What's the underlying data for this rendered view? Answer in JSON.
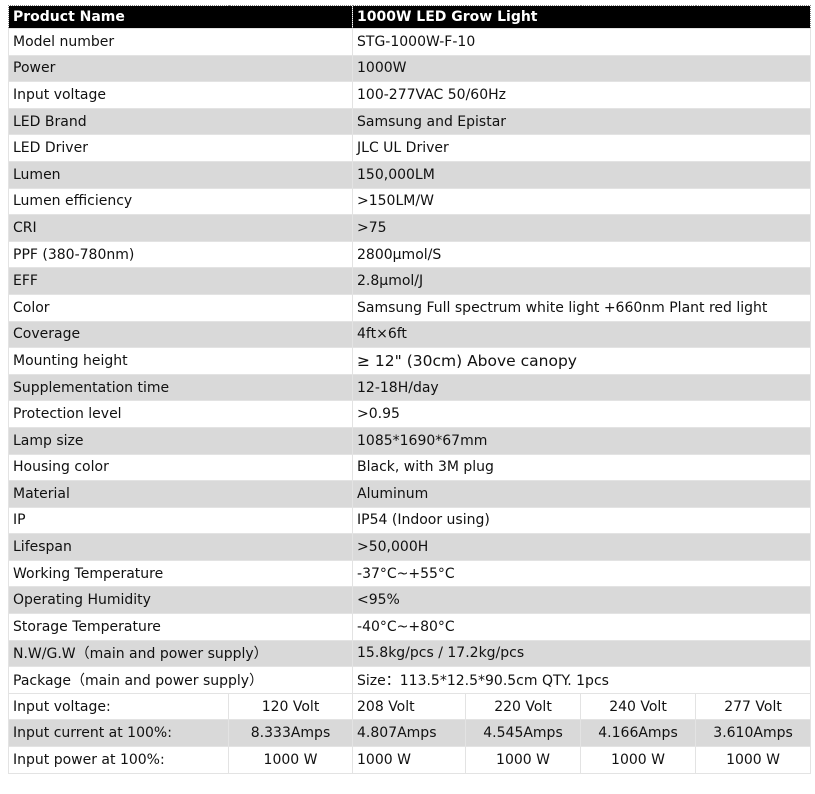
{
  "header": {
    "label": "Product Name",
    "value": "1000W LED Grow Light"
  },
  "rows": [
    [
      "Model number",
      "STG-1000W-F-10"
    ],
    [
      "Power",
      "1000W"
    ],
    [
      "Input voltage",
      "100-277VAC 50/60Hz"
    ],
    [
      "LED Brand",
      "Samsung and Epistar"
    ],
    [
      "LED Driver",
      "JLC UL Driver"
    ],
    [
      "Lumen",
      "150,000LM"
    ],
    [
      "Lumen efficiency",
      ">150LM/W"
    ],
    [
      "CRI",
      ">75"
    ],
    [
      "PPF (380-780nm)",
      "2800μmol/S"
    ],
    [
      "EFF",
      "2.8μmol/J"
    ],
    [
      "Color",
      "Samsung Full spectrum white light +660nm Plant red light"
    ],
    [
      "Coverage",
      "4ft×6ft"
    ],
    [
      "Mounting height",
      "≥ 12\" (30cm) Above canopy"
    ],
    [
      "Supplementation time",
      "12-18H/day"
    ],
    [
      "Protection level",
      ">0.95"
    ],
    [
      "Lamp size",
      "1085*1690*67mm"
    ],
    [
      "Housing color",
      "Black, with 3M plug"
    ],
    [
      "Material",
      "Aluminum"
    ],
    [
      "IP",
      "IP54 (Indoor using)"
    ],
    [
      "Lifespan",
      ">50,000H"
    ],
    [
      "Working Temperature",
      "-37°C~+55°C"
    ],
    [
      "Operating Humidity",
      "<95%"
    ],
    [
      "Storage Temperature",
      "-40°C~+80°C"
    ],
    [
      "N.W/G.W（main and power supply）",
      "15.8kg/pcs / 17.2kg/pcs"
    ],
    [
      "Package（main and power supply）",
      "Size：113.5*12.5*90.5cm QTY. 1pcs"
    ]
  ],
  "electrical": [
    {
      "label": "Input voltage:",
      "values": [
        "120 Volt",
        "208 Volt",
        "220 Volt",
        "240 Volt",
        "277 Volt"
      ]
    },
    {
      "label": "Input current at 100%:",
      "values": [
        "8.333Amps",
        "4.807Amps",
        "4.545Amps",
        "4.166Amps",
        "3.610Amps"
      ]
    },
    {
      "label": "Input power at 100%:",
      "values": [
        "1000 W",
        "1000 W",
        "1000 W",
        "1000 W",
        "1000 W"
      ]
    }
  ]
}
